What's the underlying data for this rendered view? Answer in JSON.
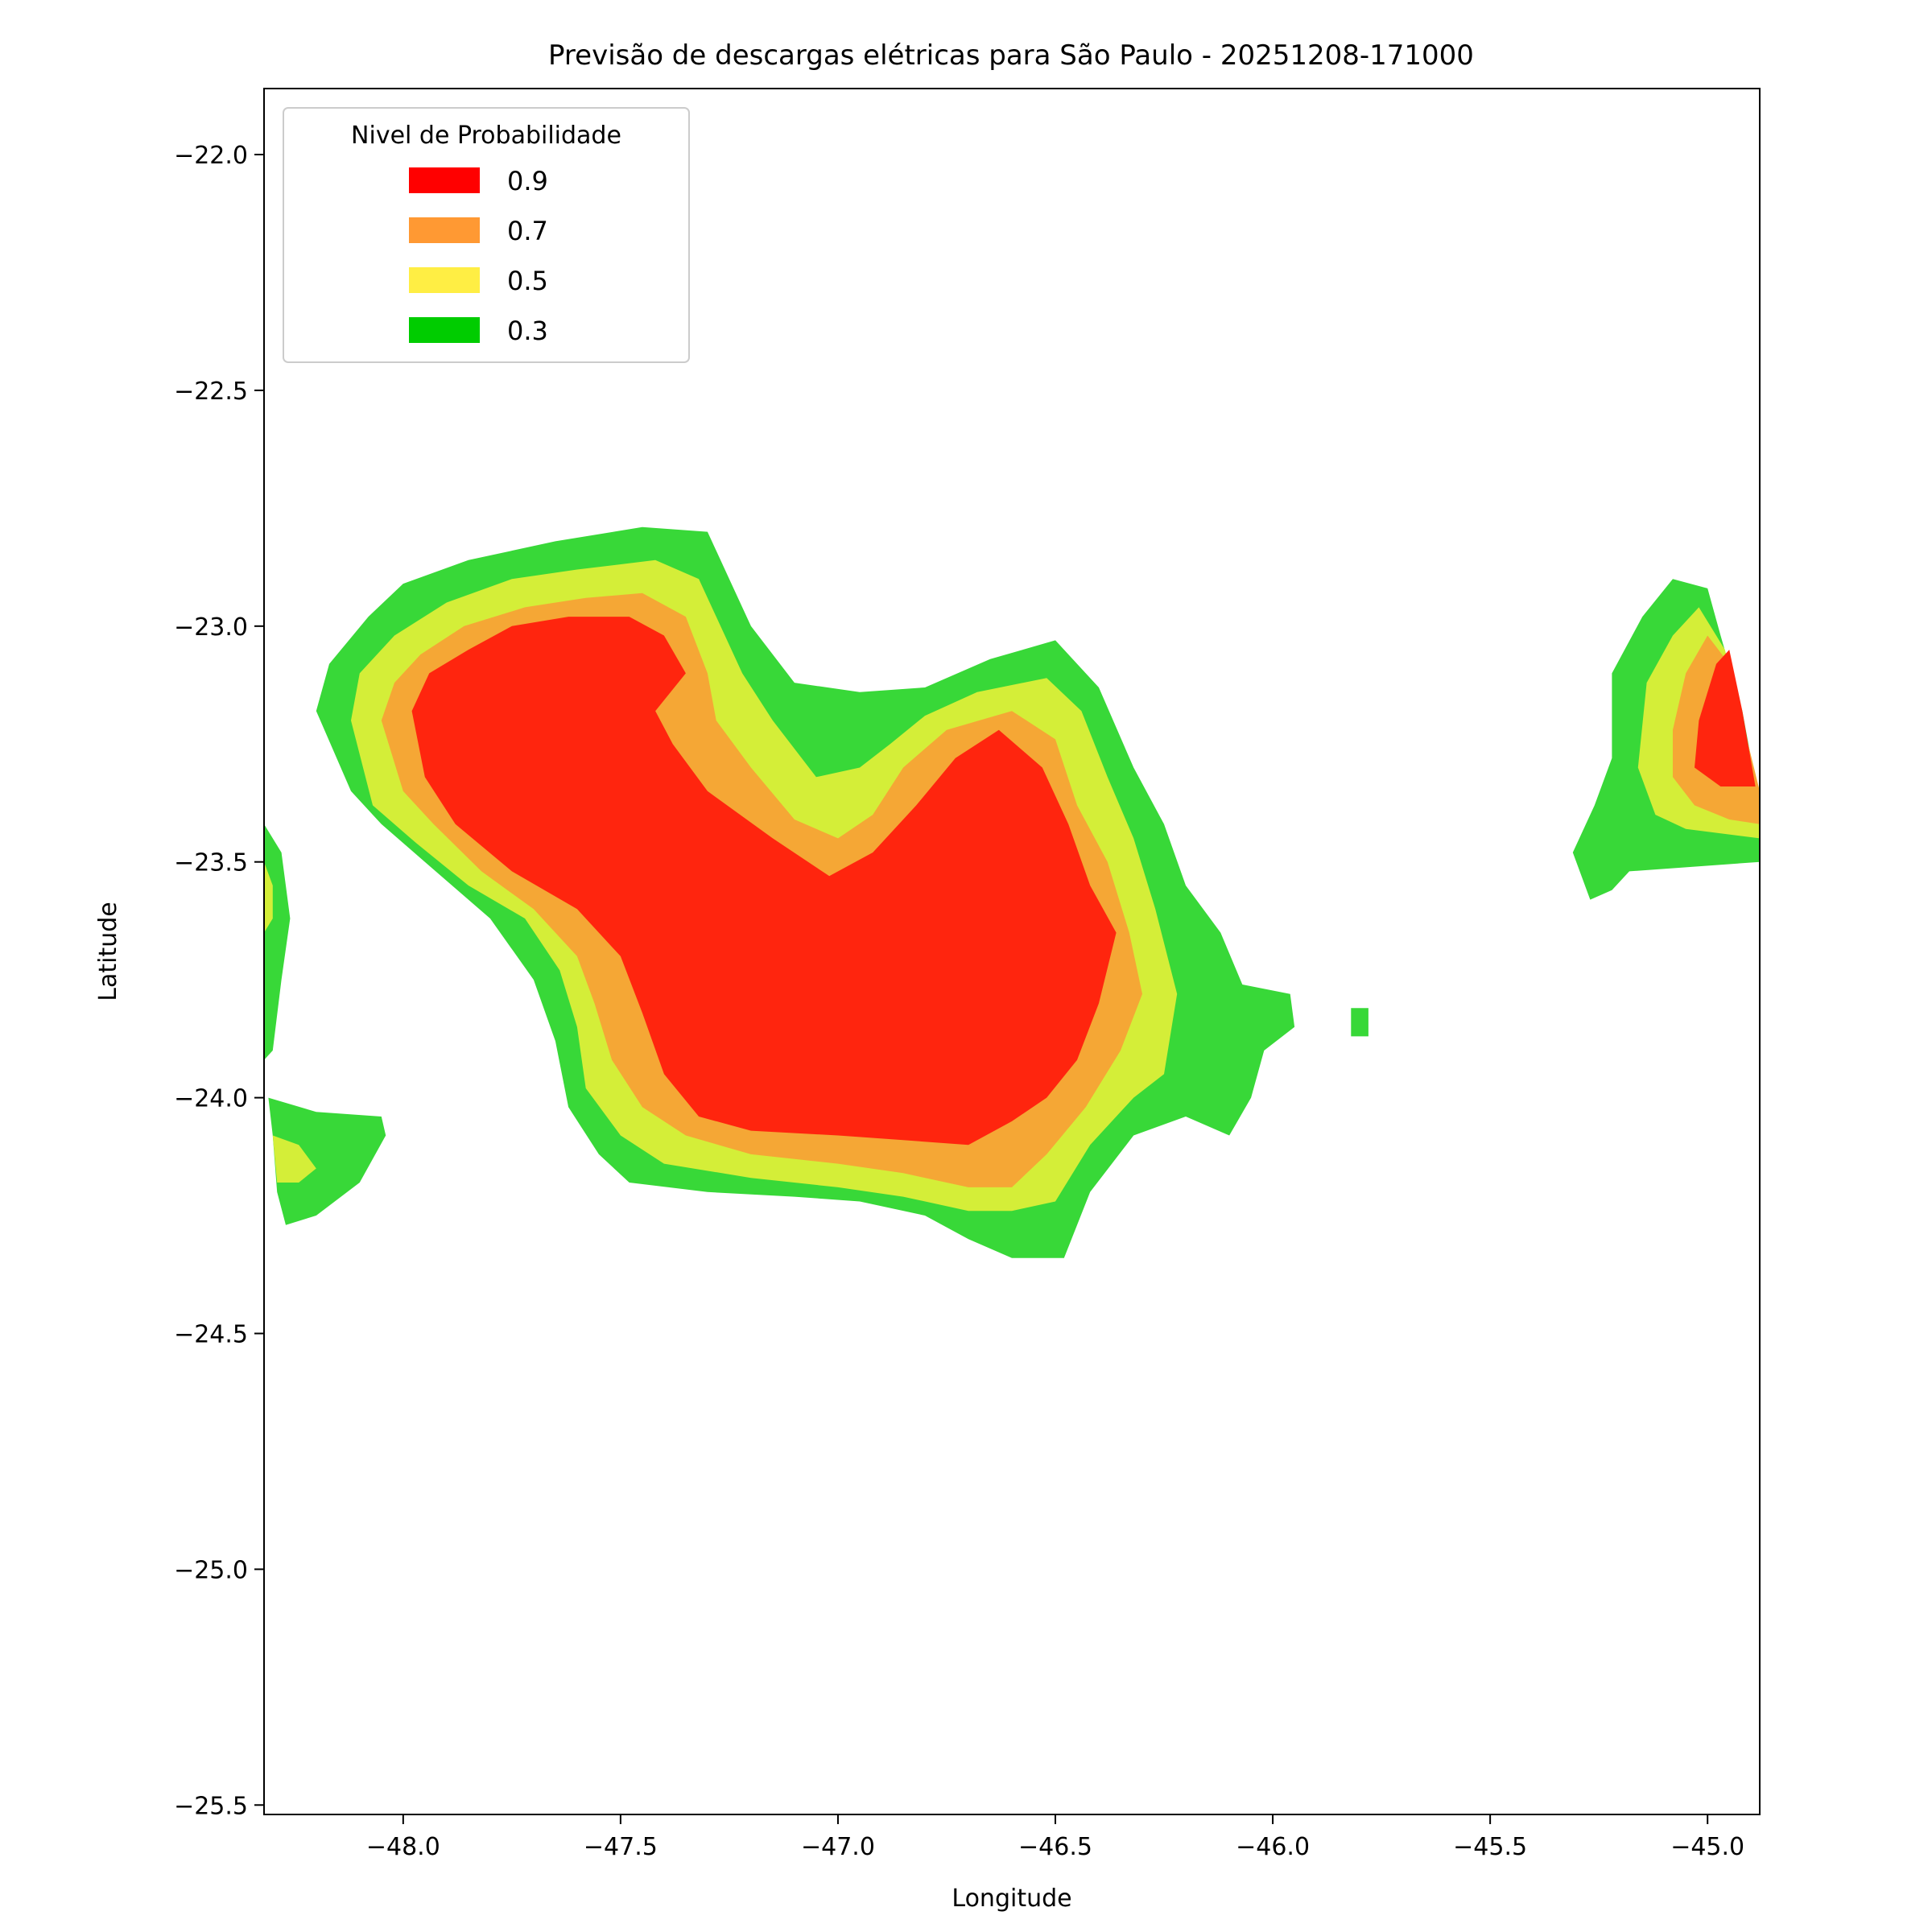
{
  "chart_data": {
    "type": "heatmap",
    "subtype": "filled-contour",
    "title": "Previsão de descargas elétricas para São Paulo - 20251208-171000",
    "xlabel": "Longitude",
    "ylabel": "Latitude",
    "xlim": [
      -48.32,
      -44.88
    ],
    "ylim": [
      -25.52,
      -21.86
    ],
    "x_ticks": [
      -48.0,
      -47.5,
      -47.0,
      -46.5,
      -46.0,
      -45.5,
      -45.0
    ],
    "x_tick_labels": [
      "−48.0",
      "−47.5",
      "−47.0",
      "−46.5",
      "−46.0",
      "−45.5",
      "−45.0"
    ],
    "y_ticks": [
      -22.0,
      -22.5,
      -23.0,
      -23.5,
      -24.0,
      -24.5,
      -25.0,
      -25.5
    ],
    "y_tick_labels": [
      "−22.0",
      "−22.5",
      "−23.0",
      "−23.5",
      "−24.0",
      "−24.5",
      "−25.0",
      "−25.5"
    ],
    "grid": false,
    "legend": {
      "title": "Nivel de Probabilidade",
      "placement": "top-left",
      "entries": [
        {
          "label": "0.9",
          "color": "#ff0000"
        },
        {
          "label": "0.7",
          "color": "#ff9933"
        },
        {
          "label": "0.5",
          "color": "#ffee44"
        },
        {
          "label": "0.3",
          "color": "#00cc00"
        }
      ]
    },
    "fill_colors": {
      "0.3": "#38d838",
      "0.5": "#d4ee38",
      "0.7": "#f5a735",
      "0.9": "#ff250e"
    },
    "regions": [
      {
        "level": "0.3",
        "points": [
          [
            -48.2,
            -23.18
          ],
          [
            -48.17,
            -23.08
          ],
          [
            -48.08,
            -22.98
          ],
          [
            -48.0,
            -22.91
          ],
          [
            -47.85,
            -22.86
          ],
          [
            -47.65,
            -22.82
          ],
          [
            -47.45,
            -22.79
          ],
          [
            -47.3,
            -22.8
          ],
          [
            -47.25,
            -22.9
          ],
          [
            -47.2,
            -23.0
          ],
          [
            -47.1,
            -23.12
          ],
          [
            -46.95,
            -23.14
          ],
          [
            -46.8,
            -23.13
          ],
          [
            -46.65,
            -23.07
          ],
          [
            -46.5,
            -23.03
          ],
          [
            -46.4,
            -23.13
          ],
          [
            -46.32,
            -23.3
          ],
          [
            -46.25,
            -23.42
          ],
          [
            -46.2,
            -23.55
          ],
          [
            -46.12,
            -23.65
          ],
          [
            -46.07,
            -23.76
          ],
          [
            -45.96,
            -23.78
          ],
          [
            -45.95,
            -23.85
          ],
          [
            -46.02,
            -23.9
          ],
          [
            -46.05,
            -24.0
          ],
          [
            -46.1,
            -24.08
          ],
          [
            -46.2,
            -24.04
          ],
          [
            -46.32,
            -24.08
          ],
          [
            -46.42,
            -24.2
          ],
          [
            -46.48,
            -24.34
          ],
          [
            -46.6,
            -24.34
          ],
          [
            -46.7,
            -24.3
          ],
          [
            -46.8,
            -24.25
          ],
          [
            -46.95,
            -24.22
          ],
          [
            -47.1,
            -24.21
          ],
          [
            -47.3,
            -24.2
          ],
          [
            -47.48,
            -24.18
          ],
          [
            -47.55,
            -24.12
          ],
          [
            -47.62,
            -24.02
          ],
          [
            -47.65,
            -23.88
          ],
          [
            -47.7,
            -23.75
          ],
          [
            -47.8,
            -23.62
          ],
          [
            -47.95,
            -23.5
          ],
          [
            -48.05,
            -23.42
          ],
          [
            -48.12,
            -23.35
          ]
        ]
      },
      {
        "level": "0.5",
        "points": [
          [
            -48.12,
            -23.2
          ],
          [
            -48.1,
            -23.1
          ],
          [
            -48.02,
            -23.02
          ],
          [
            -47.9,
            -22.95
          ],
          [
            -47.75,
            -22.9
          ],
          [
            -47.6,
            -22.88
          ],
          [
            -47.42,
            -22.86
          ],
          [
            -47.32,
            -22.9
          ],
          [
            -47.27,
            -23.0
          ],
          [
            -47.22,
            -23.1
          ],
          [
            -47.15,
            -23.2
          ],
          [
            -47.05,
            -23.32
          ],
          [
            -46.95,
            -23.3
          ],
          [
            -46.88,
            -23.25
          ],
          [
            -46.8,
            -23.19
          ],
          [
            -46.68,
            -23.14
          ],
          [
            -46.52,
            -23.11
          ],
          [
            -46.44,
            -23.18
          ],
          [
            -46.38,
            -23.32
          ],
          [
            -46.32,
            -23.45
          ],
          [
            -46.27,
            -23.6
          ],
          [
            -46.22,
            -23.78
          ],
          [
            -46.25,
            -23.95
          ],
          [
            -46.32,
            -24.0
          ],
          [
            -46.42,
            -24.1
          ],
          [
            -46.5,
            -24.22
          ],
          [
            -46.6,
            -24.24
          ],
          [
            -46.7,
            -24.24
          ],
          [
            -46.85,
            -24.21
          ],
          [
            -47.0,
            -24.19
          ],
          [
            -47.2,
            -24.17
          ],
          [
            -47.4,
            -24.14
          ],
          [
            -47.5,
            -24.08
          ],
          [
            -47.58,
            -23.98
          ],
          [
            -47.6,
            -23.85
          ],
          [
            -47.64,
            -23.73
          ],
          [
            -47.72,
            -23.62
          ],
          [
            -47.85,
            -23.55
          ],
          [
            -47.97,
            -23.46
          ],
          [
            -48.07,
            -23.38
          ]
        ]
      },
      {
        "level": "0.7",
        "points": [
          [
            -48.05,
            -23.2
          ],
          [
            -48.02,
            -23.12
          ],
          [
            -47.96,
            -23.06
          ],
          [
            -47.86,
            -23.0
          ],
          [
            -47.72,
            -22.96
          ],
          [
            -47.58,
            -22.94
          ],
          [
            -47.45,
            -22.93
          ],
          [
            -47.35,
            -22.98
          ],
          [
            -47.3,
            -23.1
          ],
          [
            -47.28,
            -23.2
          ],
          [
            -47.2,
            -23.3
          ],
          [
            -47.1,
            -23.41
          ],
          [
            -47.0,
            -23.45
          ],
          [
            -46.92,
            -23.4
          ],
          [
            -46.85,
            -23.3
          ],
          [
            -46.75,
            -23.22
          ],
          [
            -46.6,
            -23.18
          ],
          [
            -46.5,
            -23.24
          ],
          [
            -46.45,
            -23.38
          ],
          [
            -46.38,
            -23.5
          ],
          [
            -46.33,
            -23.65
          ],
          [
            -46.3,
            -23.78
          ],
          [
            -46.35,
            -23.9
          ],
          [
            -46.43,
            -24.02
          ],
          [
            -46.52,
            -24.12
          ],
          [
            -46.6,
            -24.19
          ],
          [
            -46.7,
            -24.19
          ],
          [
            -46.85,
            -24.16
          ],
          [
            -47.0,
            -24.14
          ],
          [
            -47.2,
            -24.12
          ],
          [
            -47.35,
            -24.08
          ],
          [
            -47.45,
            -24.02
          ],
          [
            -47.52,
            -23.92
          ],
          [
            -47.56,
            -23.8
          ],
          [
            -47.6,
            -23.7
          ],
          [
            -47.7,
            -23.6
          ],
          [
            -47.82,
            -23.52
          ],
          [
            -47.93,
            -23.42
          ],
          [
            -48.0,
            -23.35
          ]
        ]
      },
      {
        "level": "0.9",
        "points": [
          [
            -47.98,
            -23.18
          ],
          [
            -47.94,
            -23.1
          ],
          [
            -47.85,
            -23.05
          ],
          [
            -47.75,
            -23.0
          ],
          [
            -47.62,
            -22.98
          ],
          [
            -47.48,
            -22.98
          ],
          [
            -47.4,
            -23.02
          ],
          [
            -47.35,
            -23.1
          ],
          [
            -47.42,
            -23.18
          ],
          [
            -47.38,
            -23.25
          ],
          [
            -47.3,
            -23.35
          ],
          [
            -47.15,
            -23.45
          ],
          [
            -47.02,
            -23.53
          ],
          [
            -46.92,
            -23.48
          ],
          [
            -46.82,
            -23.38
          ],
          [
            -46.73,
            -23.28
          ],
          [
            -46.63,
            -23.22
          ],
          [
            -46.53,
            -23.3
          ],
          [
            -46.47,
            -23.42
          ],
          [
            -46.42,
            -23.55
          ],
          [
            -46.36,
            -23.65
          ],
          [
            -46.4,
            -23.8
          ],
          [
            -46.45,
            -23.92
          ],
          [
            -46.52,
            -24.0
          ],
          [
            -46.6,
            -24.05
          ],
          [
            -46.7,
            -24.1
          ],
          [
            -46.85,
            -24.09
          ],
          [
            -47.0,
            -24.08
          ],
          [
            -47.2,
            -24.07
          ],
          [
            -47.32,
            -24.04
          ],
          [
            -47.4,
            -23.95
          ],
          [
            -47.45,
            -23.82
          ],
          [
            -47.5,
            -23.7
          ],
          [
            -47.6,
            -23.6
          ],
          [
            -47.75,
            -23.52
          ],
          [
            -47.88,
            -23.42
          ],
          [
            -47.95,
            -23.32
          ]
        ]
      },
      {
        "level": "0.3",
        "points": [
          [
            -44.88,
            -23.5
          ],
          [
            -44.88,
            -23.38
          ],
          [
            -44.92,
            -23.18
          ],
          [
            -44.97,
            -23.02
          ],
          [
            -45.0,
            -22.92
          ],
          [
            -45.08,
            -22.9
          ],
          [
            -45.15,
            -22.98
          ],
          [
            -45.22,
            -23.1
          ],
          [
            -45.22,
            -23.28
          ],
          [
            -45.26,
            -23.38
          ],
          [
            -45.31,
            -23.48
          ],
          [
            -45.27,
            -23.58
          ],
          [
            -45.22,
            -23.56
          ],
          [
            -45.18,
            -23.52
          ]
        ]
      },
      {
        "level": "0.5",
        "points": [
          [
            -44.88,
            -23.45
          ],
          [
            -44.88,
            -23.38
          ],
          [
            -44.92,
            -23.2
          ],
          [
            -44.96,
            -23.05
          ],
          [
            -45.02,
            -22.96
          ],
          [
            -45.08,
            -23.02
          ],
          [
            -45.14,
            -23.12
          ],
          [
            -45.16,
            -23.3
          ],
          [
            -45.12,
            -23.4
          ],
          [
            -45.05,
            -23.43
          ]
        ]
      },
      {
        "level": "0.7",
        "points": [
          [
            -44.88,
            -23.42
          ],
          [
            -44.88,
            -23.35
          ],
          [
            -44.92,
            -23.2
          ],
          [
            -44.95,
            -23.08
          ],
          [
            -45.0,
            -23.02
          ],
          [
            -45.05,
            -23.1
          ],
          [
            -45.08,
            -23.22
          ],
          [
            -45.08,
            -23.32
          ],
          [
            -45.03,
            -23.38
          ],
          [
            -44.95,
            -23.41
          ]
        ]
      },
      {
        "level": "0.9",
        "points": [
          [
            -44.89,
            -23.34
          ],
          [
            -44.92,
            -23.18
          ],
          [
            -44.95,
            -23.05
          ],
          [
            -44.98,
            -23.08
          ],
          [
            -45.02,
            -23.2
          ],
          [
            -45.03,
            -23.3
          ],
          [
            -44.97,
            -23.34
          ]
        ]
      },
      {
        "level": "0.3",
        "points": [
          [
            -48.32,
            -23.42
          ],
          [
            -48.28,
            -23.48
          ],
          [
            -48.27,
            -23.55
          ],
          [
            -48.26,
            -23.62
          ],
          [
            -48.28,
            -23.75
          ],
          [
            -48.3,
            -23.9
          ],
          [
            -48.32,
            -23.92
          ]
        ]
      },
      {
        "level": "0.5",
        "points": [
          [
            -48.32,
            -23.5
          ],
          [
            -48.3,
            -23.55
          ],
          [
            -48.3,
            -23.62
          ],
          [
            -48.32,
            -23.65
          ]
        ]
      },
      {
        "level": "0.3",
        "points": [
          [
            -48.31,
            -24.0
          ],
          [
            -48.3,
            -24.08
          ],
          [
            -48.29,
            -24.2
          ],
          [
            -48.27,
            -24.27
          ],
          [
            -48.2,
            -24.25
          ],
          [
            -48.1,
            -24.18
          ],
          [
            -48.04,
            -24.08
          ],
          [
            -48.05,
            -24.04
          ],
          [
            -48.2,
            -24.03
          ]
        ]
      },
      {
        "level": "0.5",
        "points": [
          [
            -48.3,
            -24.08
          ],
          [
            -48.29,
            -24.18
          ],
          [
            -48.24,
            -24.18
          ],
          [
            -48.2,
            -24.15
          ],
          [
            -48.24,
            -24.1
          ]
        ]
      },
      {
        "level": "0.3",
        "points": [
          [
            -45.82,
            -23.81
          ],
          [
            -45.78,
            -23.81
          ],
          [
            -45.78,
            -23.87
          ],
          [
            -45.82,
            -23.87
          ]
        ]
      }
    ]
  }
}
